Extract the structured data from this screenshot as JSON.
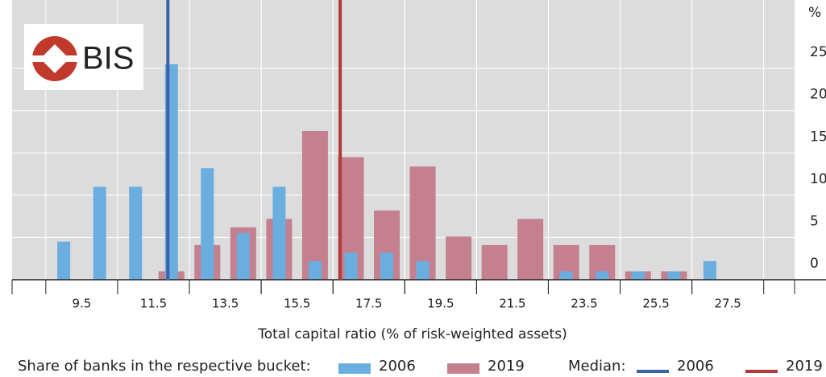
{
  "logo": "BIS",
  "chart_data": {
    "type": "bar",
    "xlabel": "Total capital ratio (% of risk-weighted assets)",
    "yunit": "%",
    "x": [
      9,
      10,
      11,
      12,
      13,
      14,
      15,
      16,
      17,
      18,
      19,
      20,
      21,
      22,
      23,
      24,
      25,
      26,
      27
    ],
    "series": [
      {
        "name": "2006",
        "color": "#6aaee0",
        "values": [
          4.5,
          11,
          11,
          25.5,
          13.2,
          5.5,
          11,
          2.2,
          3.2,
          3.2,
          2.2,
          0,
          0,
          0,
          1,
          1,
          1,
          1,
          2.2
        ],
        "median": 11.9,
        "median_color": "#3a62a8"
      },
      {
        "name": "2019",
        "color": "#c4808e",
        "values": [
          0,
          0,
          0,
          1,
          4.1,
          6.2,
          7.2,
          17.6,
          14.5,
          8.2,
          13.4,
          5.1,
          4.1,
          7.2,
          4.1,
          4.1,
          1,
          1,
          0
        ],
        "median": 16.7,
        "median_color": "#b03a3a"
      }
    ],
    "legend_bars_title": "Share of banks in the respective bucket:",
    "legend_median_title": "Median:",
    "xlim": [
      7.56,
      29.36
    ],
    "xticks": [
      9.5,
      11.5,
      13.5,
      15.5,
      17.5,
      19.5,
      21.5,
      23.5,
      25.5,
      27.5
    ],
    "ylim": [
      0,
      33.1
    ],
    "yticks": [
      0,
      5,
      10,
      15,
      20,
      25
    ],
    "grid": true
  }
}
